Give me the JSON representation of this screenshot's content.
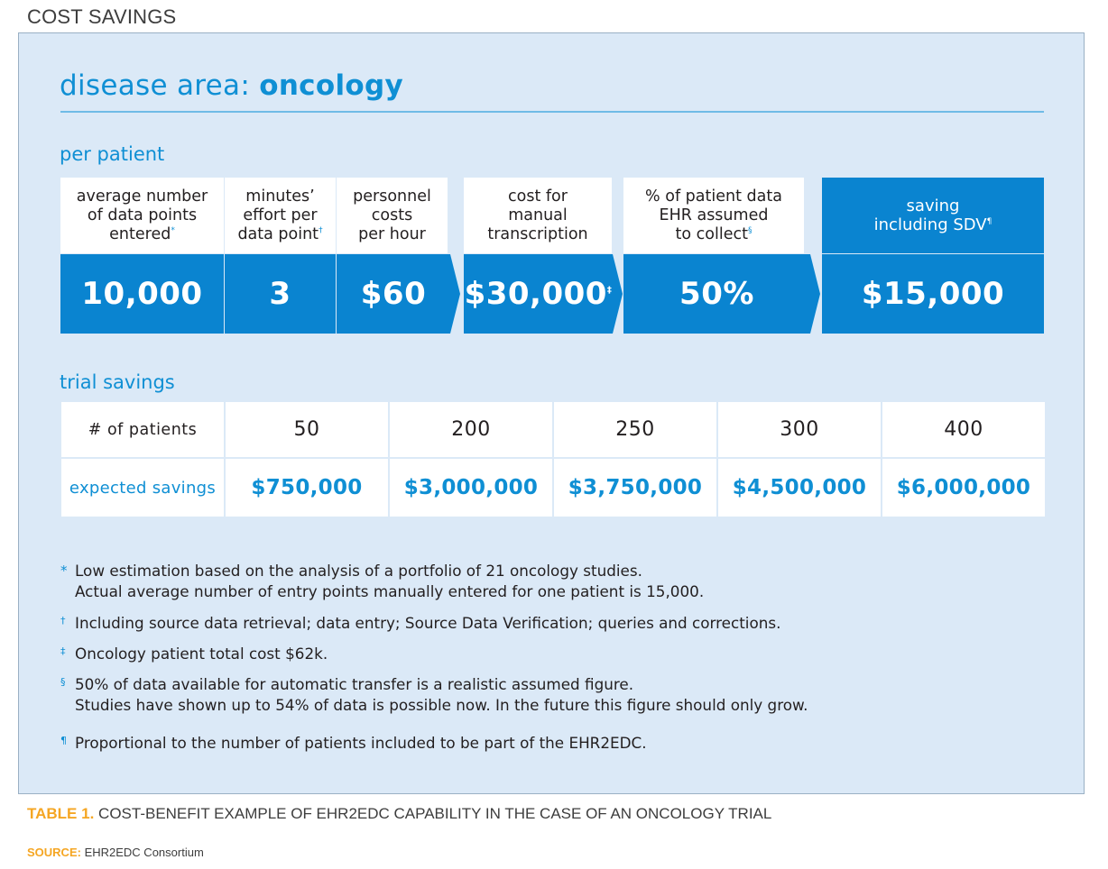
{
  "top_title": "COST SAVINGS",
  "heading": {
    "prefix": "disease area: ",
    "emphasis": "oncology"
  },
  "per_patient": {
    "label": "per patient",
    "columns": [
      {
        "header": "average number\nof data points\nentered",
        "mark": "*",
        "value": "10,000",
        "value_mark": ""
      },
      {
        "header": "minutes’\neffort per\ndata point",
        "mark": "†",
        "value": "3",
        "value_mark": ""
      },
      {
        "header": "personnel\ncosts\nper hour",
        "mark": "",
        "value": "$60",
        "value_mark": ""
      },
      {
        "header": "cost for\nmanual\ntranscription",
        "mark": "",
        "value": "$30,000",
        "value_mark": "‡"
      },
      {
        "header": "% of patient data\nEHR assumed\nto collect",
        "mark": "§",
        "value": "50%",
        "value_mark": ""
      },
      {
        "header": "saving\nincluding SDV",
        "mark": "¶",
        "value": "$15,000",
        "value_mark": ""
      }
    ]
  },
  "trial_savings": {
    "label": "trial savings",
    "row_labels": {
      "patients": "# of patients",
      "savings": "expected savings"
    },
    "patients": [
      "50",
      "200",
      "250",
      "300",
      "400"
    ],
    "savings": [
      "$750,000",
      "$3,000,000",
      "$3,750,000",
      "$4,500,000",
      "$6,000,000"
    ]
  },
  "footnotes": [
    {
      "mark": "*",
      "lines": [
        "Low estimation based on the analysis of a portfolio of 21 oncology studies.",
        "Actual average number of entry points manually entered for one patient is 15,000."
      ]
    },
    {
      "mark": "†",
      "lines": [
        "Including source data retrieval; data entry; Source Data Verification; queries and corrections."
      ]
    },
    {
      "mark": "‡",
      "lines": [
        "Oncology patient total cost $62k."
      ]
    },
    {
      "mark": "§",
      "lines": [
        "50% of data available for automatic transfer is a realistic assumed figure.",
        "Studies have shown up to 54% of data is possible now. In the future this figure should only grow."
      ]
    },
    {
      "mark": "¶",
      "lines": [
        "Proportional to the number of patients included to be part of the EHR2EDC."
      ]
    }
  ],
  "caption": {
    "tag": "TABLE 1.",
    "text": " COST-BENEFIT EXAMPLE OF EHR2EDC CAPABILITY IN THE CASE OF AN ONCOLOGY TRIAL"
  },
  "source": {
    "tag": "SOURCE:",
    "text": " EHR2EDC Consortium"
  },
  "colors": {
    "accent_blue": "#0f8fd4",
    "cell_blue": "#0a84d0",
    "panel_bg": "#dbe9f7",
    "caption_orange": "#f5a623"
  }
}
